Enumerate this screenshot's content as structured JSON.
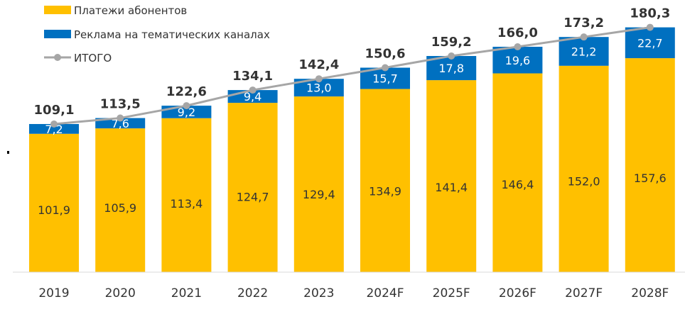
{
  "chart_data": {
    "type": "bar",
    "stacked": true,
    "title": "",
    "xlabel": "",
    "ylabel": "",
    "ylim": [
      0,
      190
    ],
    "categories": [
      "2019",
      "2020",
      "2021",
      "2022",
      "2023",
      "2024F",
      "2025F",
      "2026F",
      "2027F",
      "2028F"
    ],
    "series": [
      {
        "name": "Платежи абонентов",
        "color": "#FFC000",
        "values": [
          101.9,
          105.9,
          113.4,
          124.7,
          129.4,
          134.9,
          141.4,
          146.4,
          152.0,
          157.6
        ],
        "labels": [
          "101,9",
          "105,9",
          "113,4",
          "124,7",
          "129,4",
          "134,9",
          "141,4",
          "146,4",
          "152,0",
          "157,6"
        ]
      },
      {
        "name": "Реклама на тематических каналах",
        "color": "#0070C0",
        "values": [
          7.2,
          7.6,
          9.2,
          9.4,
          13.0,
          15.7,
          17.8,
          19.6,
          21.2,
          22.7
        ],
        "labels": [
          "7,2",
          "7,6",
          "9,2",
          "9,4",
          "13,0",
          "15,7",
          "17,8",
          "19,6",
          "21,2",
          "22,7"
        ]
      }
    ],
    "total": {
      "name": "ИТОГО",
      "color": "#A6A6A6",
      "type": "line",
      "values": [
        109.1,
        113.5,
        122.6,
        134.1,
        142.4,
        150.6,
        159.2,
        166.0,
        173.2,
        180.3
      ],
      "labels": [
        "109,1",
        "113,5",
        "122,6",
        "134,1",
        "142,4",
        "150,6",
        "159,2",
        "166,0",
        "173,2",
        "180,3"
      ]
    },
    "legend": "top-left",
    "grid": false
  }
}
